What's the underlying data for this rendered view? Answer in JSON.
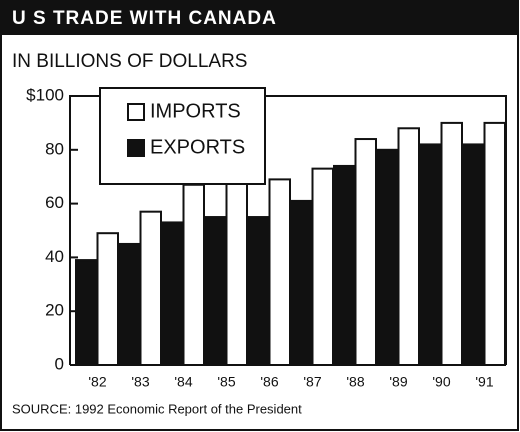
{
  "chart_data": {
    "type": "bar",
    "title": "U S TRADE WITH CANADA",
    "subtitle": "IN BILLIONS OF DOLLARS",
    "source": "SOURCE: 1992 Economic Report of the President",
    "categories": [
      "'82",
      "'83",
      "'84",
      "'85",
      "'86",
      "'87",
      "'88",
      "'89",
      "'90",
      "'91"
    ],
    "series": [
      {
        "name": "EXPORTS",
        "color": "#111111",
        "values": [
          39,
          45,
          53,
          55,
          55,
          61,
          74,
          80,
          82,
          82
        ]
      },
      {
        "name": "IMPORTS",
        "color": "#ffffff",
        "values": [
          49,
          57,
          67,
          69,
          69,
          73,
          84,
          88,
          90,
          90
        ]
      }
    ],
    "ylim": [
      0,
      100
    ],
    "yticks": [
      0,
      20,
      40,
      60,
      80,
      {
        "value": 100,
        "label": "$100"
      }
    ],
    "legend": "upper left"
  }
}
